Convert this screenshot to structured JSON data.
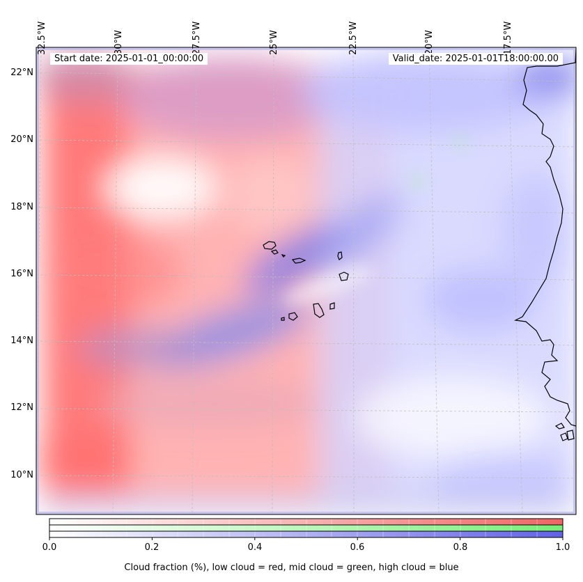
{
  "header": {
    "start_date": "Start date: 2025-01-01_00:00:00",
    "valid_date": "Valid_date: 2025-01-01T18:00:00.00"
  },
  "axes": {
    "lon_labels": [
      "32.5°W",
      "30°W",
      "27.5°W",
      "25°W",
      "22.5°W",
      "20°W",
      "17.5°W"
    ],
    "lat_labels": [
      "22°N",
      "20°N",
      "18°N",
      "16°N",
      "14°N",
      "12°N",
      "10°N"
    ]
  },
  "colorbar": {
    "ticks": [
      "0.0",
      "0.2",
      "0.4",
      "0.6",
      "0.8",
      "1.0"
    ],
    "title": "Cloud fraction (%), low cloud = red, mid cloud = green, high cloud = blue",
    "colors": {
      "low": "#f05050",
      "mid": "#66e066",
      "high": "#5555dd"
    }
  },
  "map": {
    "grid": true,
    "coastline_color": "#000000"
  }
}
